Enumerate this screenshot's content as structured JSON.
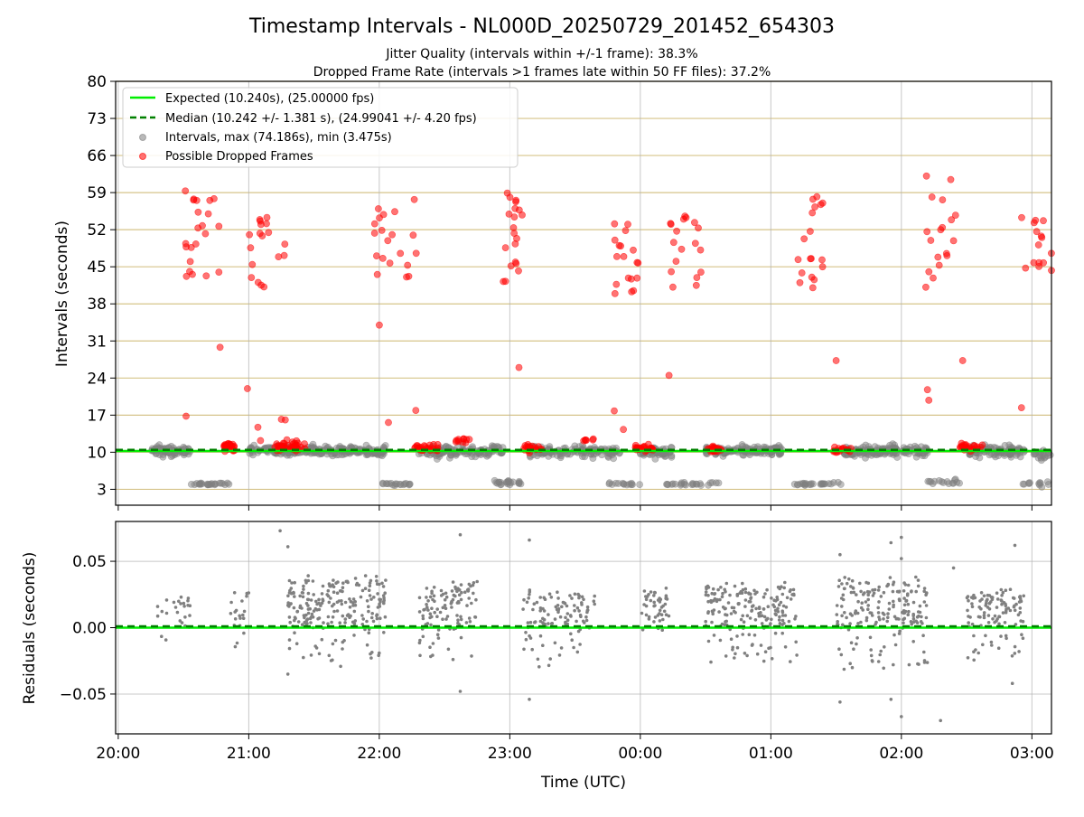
{
  "title": "Timestamp Intervals - NL000D_20250729_201452_654303",
  "subtitle_line1": "Jitter Quality (intervals within +/-1 frame): 38.3%",
  "subtitle_line2": "Dropped Frame Rate (intervals >1 frames late within 50 FF files): 37.2%",
  "colors": {
    "expected": "#00ee00",
    "median": "#008000",
    "intervals": "#808080",
    "dropped": "#ff0000",
    "hgrid_top": "#d6c48a",
    "grid": "#b0b0b0"
  },
  "chart_data": [
    {
      "type": "scatter",
      "panel": "top",
      "ylabel": "Intervals (seconds)",
      "ylim": [
        0,
        80
      ],
      "yticks": [
        "80",
        "73",
        "66",
        "59",
        "52",
        "45",
        "38",
        "31",
        "24",
        "17",
        "10",
        "3"
      ],
      "ytick_values": [
        80,
        73,
        66,
        59,
        52,
        45,
        38,
        31,
        24,
        17,
        10,
        3
      ],
      "xlim_hours": [
        19.98,
        27.15
      ],
      "grid": "both",
      "legend_position": "upper-left",
      "lines": [
        {
          "name": "Expected (10.240s), (25.00000 fps)",
          "y": 10.24,
          "style": "solid",
          "color": "#00ee00"
        },
        {
          "name": "Median (10.242 +/- 1.381 s), (24.99041 +/- 4.20 fps)",
          "y": 10.242,
          "style": "dashed",
          "color": "#008000"
        }
      ],
      "series": [
        {
          "name": "Intervals, max (74.186s), min (3.475s)",
          "color": "#808080",
          "clusters": [
            {
              "x_start": 20.25,
              "x_end": 20.55,
              "center": 10.2,
              "spread": 1.5,
              "n": 70
            },
            {
              "x_start": 20.55,
              "x_end": 20.85,
              "center": 4.0,
              "spread": 0.3,
              "n": 25
            },
            {
              "x_start": 21.0,
              "x_end": 22.05,
              "center": 10.3,
              "spread": 1.2,
              "n": 230
            },
            {
              "x_start": 22.0,
              "x_end": 22.25,
              "center": 4.0,
              "spread": 0.3,
              "n": 18
            },
            {
              "x_start": 22.3,
              "x_end": 22.95,
              "center": 10.2,
              "spread": 1.5,
              "n": 120
            },
            {
              "x_start": 22.85,
              "x_end": 23.1,
              "center": 4.2,
              "spread": 0.6,
              "n": 22
            },
            {
              "x_start": 23.15,
              "x_end": 23.85,
              "center": 10.2,
              "spread": 1.4,
              "n": 130
            },
            {
              "x_start": 23.75,
              "x_end": 24.0,
              "center": 4.0,
              "spread": 0.4,
              "n": 14
            },
            {
              "x_start": 24.0,
              "x_end": 24.25,
              "center": 10.0,
              "spread": 1.3,
              "n": 50
            },
            {
              "x_start": 24.2,
              "x_end": 24.6,
              "center": 4.0,
              "spread": 0.4,
              "n": 24
            },
            {
              "x_start": 24.5,
              "x_end": 25.1,
              "center": 10.3,
              "spread": 1.1,
              "n": 140
            },
            {
              "x_start": 25.15,
              "x_end": 25.55,
              "center": 4.0,
              "spread": 0.4,
              "n": 26
            },
            {
              "x_start": 25.55,
              "x_end": 26.2,
              "center": 10.2,
              "spread": 1.3,
              "n": 150
            },
            {
              "x_start": 26.15,
              "x_end": 26.45,
              "center": 4.4,
              "spread": 0.8,
              "n": 16
            },
            {
              "x_start": 26.5,
              "x_end": 26.95,
              "center": 10.2,
              "spread": 1.4,
              "n": 100
            },
            {
              "x_start": 26.9,
              "x_end": 27.15,
              "center": 4.0,
              "spread": 0.6,
              "n": 12
            },
            {
              "x_start": 27.0,
              "x_end": 27.15,
              "center": 9.5,
              "spread": 1.5,
              "n": 20
            }
          ]
        },
        {
          "name": "Possible Dropped Frames",
          "color": "#ff0000",
          "bursts": [
            {
              "x_start": 20.5,
              "x_end": 20.8,
              "ymin": 43,
              "ymax": 60,
              "n": 22
            },
            {
              "x_start": 20.8,
              "x_end": 20.9,
              "center": 11.0,
              "spread": 1.0,
              "n": 30
            },
            {
              "x_start": 20.97,
              "x_end": 21.3,
              "ymin": 41,
              "ymax": 56,
              "n": 18
            },
            {
              "x_start": 21.2,
              "x_end": 21.45,
              "center": 11.0,
              "spread": 1.2,
              "n": 40
            },
            {
              "x_start": 21.95,
              "x_end": 22.3,
              "ymin": 43,
              "ymax": 58,
              "n": 20
            },
            {
              "x_start": 22.25,
              "x_end": 22.45,
              "center": 10.8,
              "spread": 0.9,
              "n": 28
            },
            {
              "x_start": 22.55,
              "x_end": 22.7,
              "center": 12.3,
              "spread": 0.5,
              "n": 10
            },
            {
              "x_start": 22.95,
              "x_end": 23.1,
              "ymin": 42,
              "ymax": 59,
              "n": 20
            },
            {
              "x_start": 23.1,
              "x_end": 23.25,
              "center": 10.8,
              "spread": 0.8,
              "n": 22
            },
            {
              "x_start": 23.55,
              "x_end": 23.65,
              "center": 12.3,
              "spread": 0.4,
              "n": 6
            },
            {
              "x_start": 23.8,
              "x_end": 24.0,
              "ymin": 39,
              "ymax": 54,
              "n": 18
            },
            {
              "x_start": 23.95,
              "x_end": 24.1,
              "center": 10.8,
              "spread": 0.8,
              "n": 26
            },
            {
              "x_start": 24.2,
              "x_end": 24.5,
              "ymin": 41,
              "ymax": 55,
              "n": 18
            },
            {
              "x_start": 24.5,
              "x_end": 24.62,
              "center": 10.6,
              "spread": 0.7,
              "n": 20
            },
            {
              "x_start": 25.2,
              "x_end": 25.42,
              "ymin": 38,
              "ymax": 59,
              "n": 18
            },
            {
              "x_start": 25.48,
              "x_end": 25.62,
              "center": 10.5,
              "spread": 0.7,
              "n": 16
            },
            {
              "x_start": 26.18,
              "x_end": 26.42,
              "ymin": 41,
              "ymax": 66,
              "n": 18
            },
            {
              "x_start": 26.45,
              "x_end": 26.62,
              "center": 11.0,
              "spread": 0.9,
              "n": 22
            },
            {
              "x_start": 26.9,
              "x_end": 27.15,
              "ymin": 44,
              "ymax": 56,
              "n": 14
            }
          ],
          "outliers": [
            {
              "x": 20.52,
              "y": 16.8
            },
            {
              "x": 20.78,
              "y": 29.8
            },
            {
              "x": 20.99,
              "y": 22.0
            },
            {
              "x": 21.07,
              "y": 14.7
            },
            {
              "x": 21.09,
              "y": 12.2
            },
            {
              "x": 21.25,
              "y": 16.2
            },
            {
              "x": 21.28,
              "y": 16.1
            },
            {
              "x": 22.0,
              "y": 34.0
            },
            {
              "x": 22.07,
              "y": 15.6
            },
            {
              "x": 22.28,
              "y": 17.9
            },
            {
              "x": 23.07,
              "y": 26.0
            },
            {
              "x": 23.8,
              "y": 17.8
            },
            {
              "x": 23.87,
              "y": 14.3
            },
            {
              "x": 24.22,
              "y": 24.5
            },
            {
              "x": 25.5,
              "y": 27.3
            },
            {
              "x": 26.2,
              "y": 21.8
            },
            {
              "x": 26.21,
              "y": 19.8
            },
            {
              "x": 26.47,
              "y": 27.3
            },
            {
              "x": 26.92,
              "y": 18.4
            },
            {
              "x": 27.15,
              "y": 44.3
            }
          ]
        }
      ]
    },
    {
      "type": "scatter",
      "panel": "bottom",
      "xlabel": "Time (UTC)",
      "ylabel": "Residuals (seconds)",
      "ylim": [
        -0.08,
        0.08
      ],
      "yticks": [
        "0.05",
        "0.00",
        "−0.05"
      ],
      "ytick_values": [
        0.05,
        0.0,
        -0.05
      ],
      "xticks": [
        "20:00",
        "21:00",
        "22:00",
        "23:00",
        "00:00",
        "01:00",
        "02:00",
        "03:00"
      ],
      "xtick_hours": [
        20,
        21,
        22,
        23,
        24,
        25,
        26,
        27
      ],
      "grid": "both",
      "lines": [
        {
          "y": 0.0,
          "style": "solid",
          "color": "#00ee00"
        },
        {
          "y": 0.001,
          "style": "dashed",
          "color": "#008000"
        }
      ],
      "series": [
        {
          "name": "Residuals",
          "color": "#808080",
          "clusters": [
            {
              "x_start": 20.3,
              "x_end": 20.55,
              "n": 25,
              "ymin": -0.012,
              "ymax": 0.026
            },
            {
              "x_start": 20.85,
              "x_end": 21.0,
              "n": 20,
              "ymin": -0.017,
              "ymax": 0.028
            },
            {
              "x_start": 21.3,
              "x_end": 22.05,
              "n": 220,
              "ymin": -0.03,
              "ymax": 0.04
            },
            {
              "x_start": 22.3,
              "x_end": 22.75,
              "n": 110,
              "ymin": -0.025,
              "ymax": 0.035
            },
            {
              "x_start": 23.1,
              "x_end": 23.65,
              "n": 110,
              "ymin": -0.03,
              "ymax": 0.03
            },
            {
              "x_start": 24.0,
              "x_end": 24.22,
              "n": 45,
              "ymin": -0.01,
              "ymax": 0.03
            },
            {
              "x_start": 24.5,
              "x_end": 25.2,
              "n": 190,
              "ymin": -0.027,
              "ymax": 0.035
            },
            {
              "x_start": 25.5,
              "x_end": 26.2,
              "n": 190,
              "ymin": -0.032,
              "ymax": 0.04
            },
            {
              "x_start": 26.5,
              "x_end": 26.95,
              "n": 110,
              "ymin": -0.025,
              "ymax": 0.03
            }
          ],
          "outliers": [
            {
              "x": 21.24,
              "y": 0.073
            },
            {
              "x": 21.3,
              "y": 0.061
            },
            {
              "x": 21.3,
              "y": -0.035
            },
            {
              "x": 22.62,
              "y": 0.07
            },
            {
              "x": 22.62,
              "y": -0.048
            },
            {
              "x": 23.15,
              "y": 0.066
            },
            {
              "x": 23.15,
              "y": -0.054
            },
            {
              "x": 25.53,
              "y": 0.055
            },
            {
              "x": 25.53,
              "y": -0.056
            },
            {
              "x": 25.92,
              "y": 0.064
            },
            {
              "x": 25.92,
              "y": -0.054
            },
            {
              "x": 26.0,
              "y": 0.068
            },
            {
              "x": 26.0,
              "y": -0.067
            },
            {
              "x": 26.3,
              "y": -0.07
            },
            {
              "x": 26.87,
              "y": 0.062
            },
            {
              "x": 26.85,
              "y": -0.042
            },
            {
              "x": 26.0,
              "y": 0.052
            },
            {
              "x": 26.4,
              "y": 0.045
            }
          ]
        }
      ]
    }
  ],
  "legend": {
    "items": [
      {
        "label": "Expected (10.240s), (25.00000 fps)"
      },
      {
        "label": "Median (10.242 +/- 1.381 s), (24.99041 +/- 4.20 fps)"
      },
      {
        "label": "Intervals, max (74.186s), min (3.475s)"
      },
      {
        "label": "Possible Dropped Frames"
      }
    ]
  }
}
